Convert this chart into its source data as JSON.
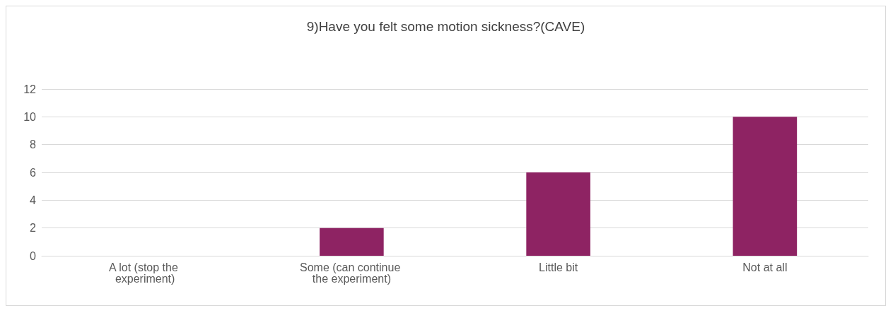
{
  "chart_data": {
    "type": "bar",
    "title": "9)Have you felt some motion sickness?(CAVE)",
    "categories": [
      "A lot (stop the experiment)",
      "Some (can continue the experiment)",
      "Little bit",
      "Not at all"
    ],
    "values": [
      0,
      2,
      6,
      10
    ],
    "color": "#8e2363",
    "ylim": [
      0,
      12
    ],
    "yticks": [
      0,
      2,
      4,
      6,
      8,
      10,
      12
    ],
    "grid": "y"
  }
}
